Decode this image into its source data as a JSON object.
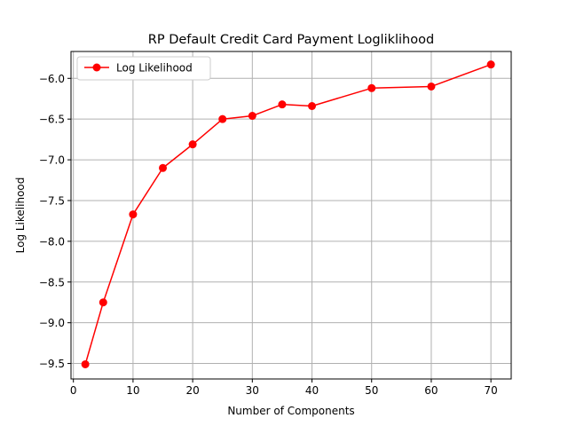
{
  "chart_data": {
    "type": "line",
    "title": "RP Default Credit Card Payment Logliklihood",
    "xlabel": "Number of Components",
    "ylabel": "Log Likelihood",
    "xlim": [
      -0.4,
      73.4
    ],
    "ylim": [
      -9.69,
      -5.67
    ],
    "xticks": [
      0,
      10,
      20,
      30,
      40,
      50,
      60,
      70
    ],
    "yticks": [
      -9.5,
      -9.0,
      -8.5,
      -8.0,
      -7.5,
      -7.0,
      -6.5,
      -6.0
    ],
    "xtick_labels": [
      "0",
      "10",
      "20",
      "30",
      "40",
      "50",
      "60",
      "70"
    ],
    "ytick_labels": [
      "−9.5",
      "−9.0",
      "−8.5",
      "−8.0",
      "−7.5",
      "−7.0",
      "−6.5",
      "−6.0"
    ],
    "grid": true,
    "legend_position": "upper-left",
    "series": [
      {
        "name": "Log Likelihood",
        "color": "#ff0000",
        "x": [
          2,
          5,
          10,
          15,
          20,
          25,
          30,
          35,
          40,
          50,
          60,
          70
        ],
        "y": [
          -9.51,
          -8.75,
          -7.67,
          -7.1,
          -6.81,
          -6.5,
          -6.46,
          -6.32,
          -6.34,
          -6.12,
          -6.1,
          -5.83
        ]
      }
    ]
  }
}
